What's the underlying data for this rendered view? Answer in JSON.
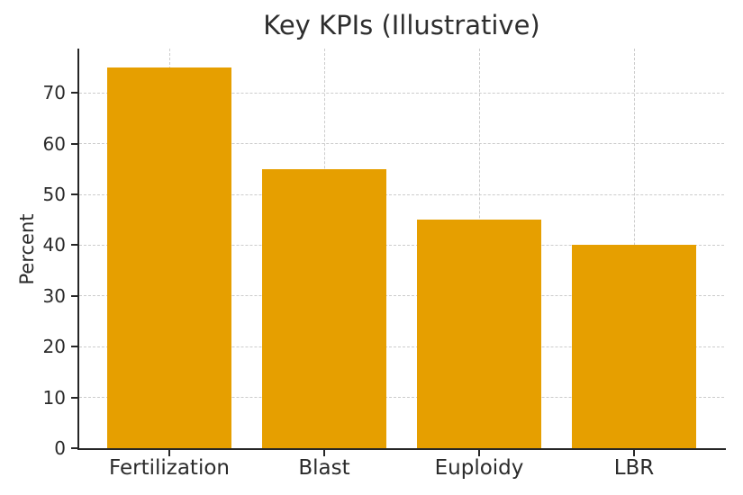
{
  "chart_data": {
    "type": "bar",
    "title": "Key KPIs (Illustrative)",
    "xlabel": "",
    "ylabel": "Percent",
    "categories": [
      "Fertilization",
      "Blast",
      "Euploidy",
      "LBR"
    ],
    "values": [
      75,
      55,
      45,
      40
    ],
    "ylim": [
      0,
      78.75
    ],
    "yticks": [
      0,
      10,
      20,
      30,
      40,
      50,
      60,
      70
    ],
    "grid": {
      "style": "dashed",
      "horizontal": true,
      "vertical": true
    },
    "legend": "none",
    "colors": {
      "bar": "#E69F00",
      "axis": "#262626",
      "grid": "#cccccc",
      "text": "#2b2b2b",
      "background": "#ffffff"
    }
  }
}
